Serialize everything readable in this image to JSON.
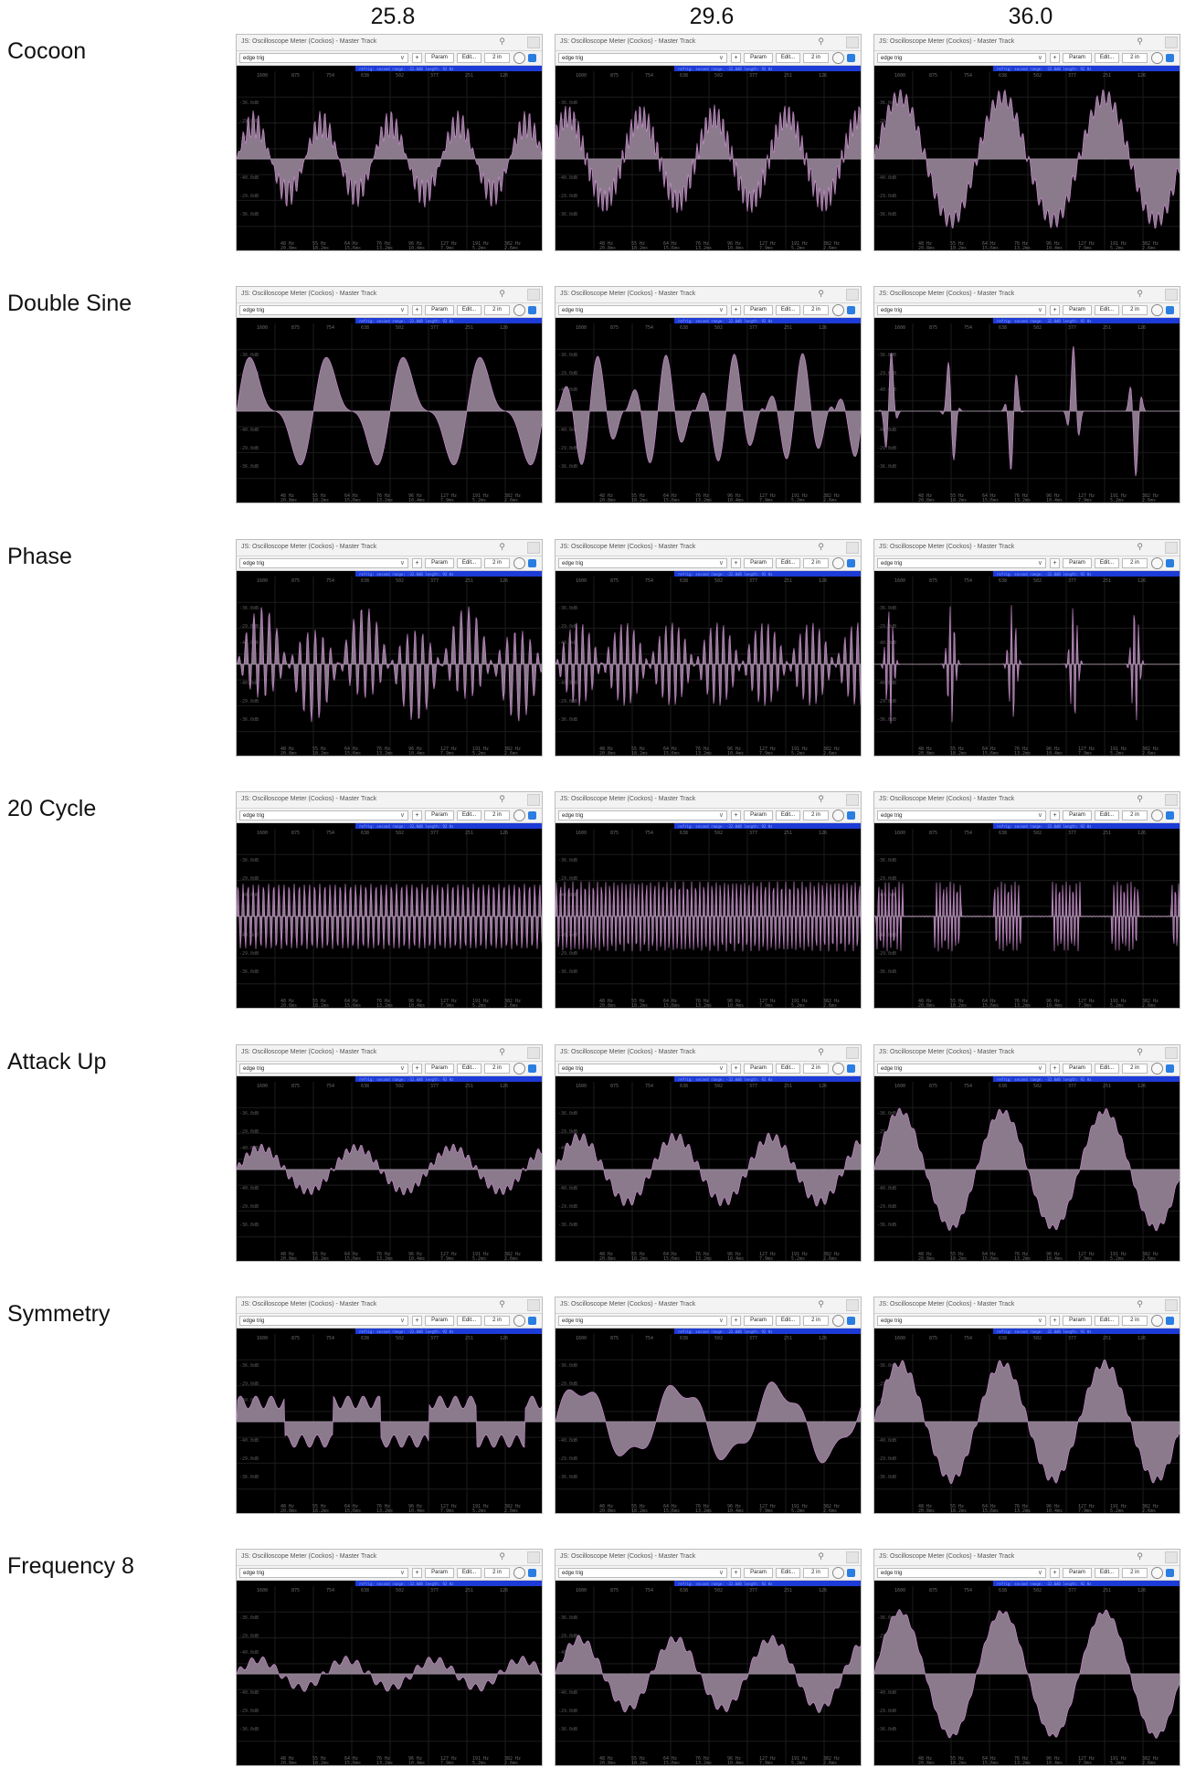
{
  "column_headers": [
    "25.8",
    "29.6",
    "36.0"
  ],
  "row_labels": [
    "Cocoon",
    "Double Sine",
    "Phase",
    "20 Cycle",
    "Attack Up",
    "Symmetry",
    "Frequency 8"
  ],
  "window": {
    "title": "JS: Oscilloscope Meter (Cockos) - Master Track",
    "preset": "edge trig",
    "plus": "+",
    "param": "Param",
    "edit": "Edit...",
    "io": "2 in",
    "chevron": "∨",
    "pin": "⚲"
  },
  "scope_axis": {
    "top_ticks": [
      "1600",
      "875",
      "754",
      "638",
      "502",
      "377",
      "251",
      "126"
    ],
    "status_text": "refrig: second  range: -32.0dB  length: 92 Hz",
    "db_labels": [
      "-36.0dB",
      "-29.0dB",
      "-40.0dB",
      "-40.0dB",
      "-29.0dB",
      "-36.0dB"
    ],
    "bottom_freqs": [
      "48 Hz",
      "55 Hz",
      "64 Hz",
      "76 Hz",
      "96 Hz",
      "127 Hz",
      "191 Hz",
      "382 Hz"
    ],
    "bottom_ms": [
      "20.8ms",
      "18.2ms",
      "15.6ms",
      "13.2ms",
      "10.4ms",
      "7.9ms",
      "5.2ms",
      "2.6ms"
    ]
  },
  "colors": {
    "wave_fill": "#8a7a8c",
    "wave_line": "#d58fd9",
    "scope_bg": "#000000",
    "grid": "#1c1c1c"
  }
}
